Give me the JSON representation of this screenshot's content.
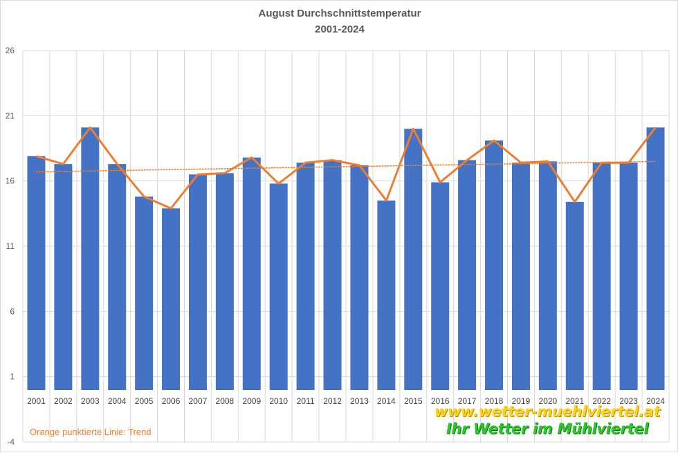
{
  "chart_data": {
    "type": "bar",
    "title": "August Durchschnittstemperatur",
    "subtitle": "2001-2024",
    "categories": [
      "2001",
      "2002",
      "2003",
      "2004",
      "2005",
      "2006",
      "2007",
      "2008",
      "2009",
      "2010",
      "2011",
      "2012",
      "2013",
      "2014",
      "2015",
      "2016",
      "2017",
      "2018",
      "2019",
      "2020",
      "2021",
      "2022",
      "2023",
      "2024"
    ],
    "series": [
      {
        "values": [
          17.9,
          17.3,
          20.1,
          17.3,
          14.8,
          13.9,
          16.5,
          16.6,
          17.8,
          15.8,
          17.4,
          17.6,
          17.2,
          14.5,
          20.0,
          15.9,
          17.6,
          19.1,
          17.4,
          17.5,
          14.4,
          17.4,
          17.4,
          20.1
        ],
        "color": "#4472c4",
        "mark": "bar"
      },
      {
        "values": [
          17.9,
          17.3,
          20.1,
          17.3,
          14.8,
          13.9,
          16.5,
          16.6,
          17.8,
          15.8,
          17.4,
          17.6,
          17.2,
          14.5,
          20.0,
          15.9,
          17.6,
          19.1,
          17.4,
          17.5,
          14.4,
          17.4,
          17.4,
          20.1
        ],
        "color": "#ed7d31",
        "mark": "line"
      }
    ],
    "trend": {
      "start": 16.7,
      "end": 17.5,
      "color": "#ed7d31",
      "style": "dotted"
    },
    "ylim": [
      -4,
      26
    ],
    "yticks": [
      -4,
      1,
      6,
      11,
      16,
      21,
      26
    ],
    "xlabel": "",
    "ylabel": "",
    "grid": true
  },
  "annotations": {
    "trend_note": "Orange punktierte Linie: Trend",
    "website": "www.wetter-muehlviertel.at",
    "slogan": "Ihr Wetter im Mühlviertel"
  },
  "colors": {
    "bar": "#4472c4",
    "line": "#ed7d31",
    "grid": "#d9d9d9",
    "text": "#595959",
    "website": "#ffd21f",
    "slogan": "#2ec52e"
  }
}
